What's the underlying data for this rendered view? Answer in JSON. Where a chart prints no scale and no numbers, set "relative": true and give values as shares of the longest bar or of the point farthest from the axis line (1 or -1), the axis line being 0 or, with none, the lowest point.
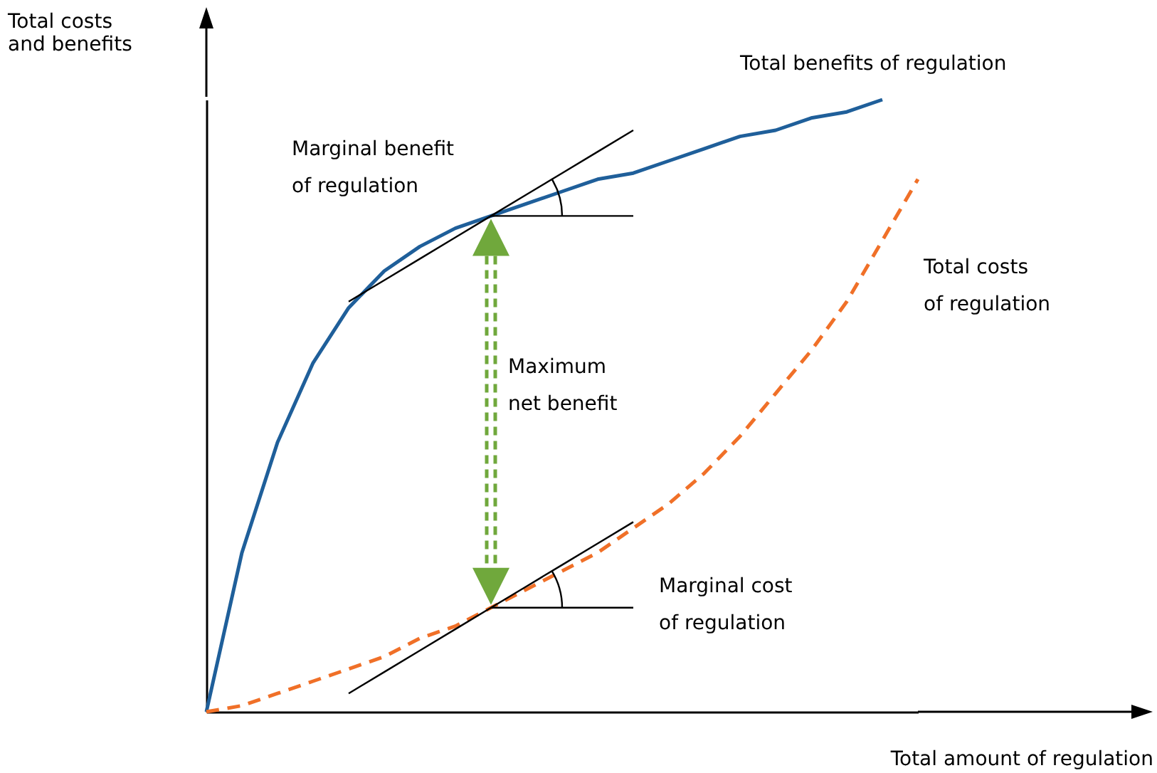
{
  "chart_data": {
    "type": "line",
    "relative": true,
    "xlabel": "Total amount of regulation",
    "ylabel": "Total costs and benefits",
    "categories": [
      null,
      null,
      null,
      null,
      null,
      null,
      null,
      null,
      null,
      null,
      null,
      null,
      null,
      null,
      null,
      null,
      null,
      null,
      null,
      null,
      null
    ],
    "series": [
      {
        "name": "Total benefits of regulation",
        "color": "#1f5f9a",
        "line_style": "solid",
        "values": [
          0,
          0.26,
          0.44,
          0.57,
          0.66,
          0.72,
          0.76,
          0.79,
          0.81,
          0.83,
          0.85,
          0.87,
          0.88,
          0.9,
          0.92,
          0.94,
          0.95,
          0.97,
          0.98,
          1,
          null
        ]
      },
      {
        "name": "Total costs of regulation",
        "color": "#f07028",
        "line_style": "dashed",
        "values": [
          0,
          0.01,
          0.03,
          0.05,
          0.07,
          0.09,
          0.12,
          0.14,
          0.17,
          0.2,
          0.23,
          0.26,
          0.3,
          0.34,
          0.39,
          0.45,
          0.52,
          0.59,
          0.67,
          0.77,
          0.87
        ]
      },
      {
        "color": "#000000",
        "line_style": "solid",
        "values": [
          null,
          null,
          null,
          null,
          0.67,
          0.705,
          0.74,
          0.775,
          0.81,
          0.845,
          0.88,
          0.915,
          0.95,
          null,
          null,
          null,
          null,
          null,
          null,
          null,
          null
        ]
      },
      {
        "color": "#000000",
        "line_style": "solid",
        "values": [
          null,
          null,
          null,
          null,
          null,
          null,
          null,
          null,
          0.81,
          0.81,
          0.81,
          0.81,
          0.81,
          null,
          null,
          null,
          null,
          null,
          null,
          null,
          null
        ]
      },
      {
        "color": "#000000",
        "line_style": "solid",
        "values": [
          null,
          null,
          null,
          null,
          0.03,
          0.065,
          0.1,
          0.135,
          0.17,
          0.205,
          0.24,
          0.275,
          0.31,
          null,
          null,
          null,
          null,
          null,
          null,
          null,
          null
        ]
      },
      {
        "color": "#000000",
        "line_style": "solid",
        "values": [
          null,
          null,
          null,
          null,
          null,
          null,
          null,
          null,
          0.17,
          0.17,
          0.17,
          0.17,
          0.17,
          null,
          null,
          null,
          null,
          null,
          null,
          null,
          null
        ]
      }
    ],
    "annotations": [
      "Marginal benefit of regulation",
      "Maximum net benefit",
      "Marginal cost of regulation"
    ]
  }
}
